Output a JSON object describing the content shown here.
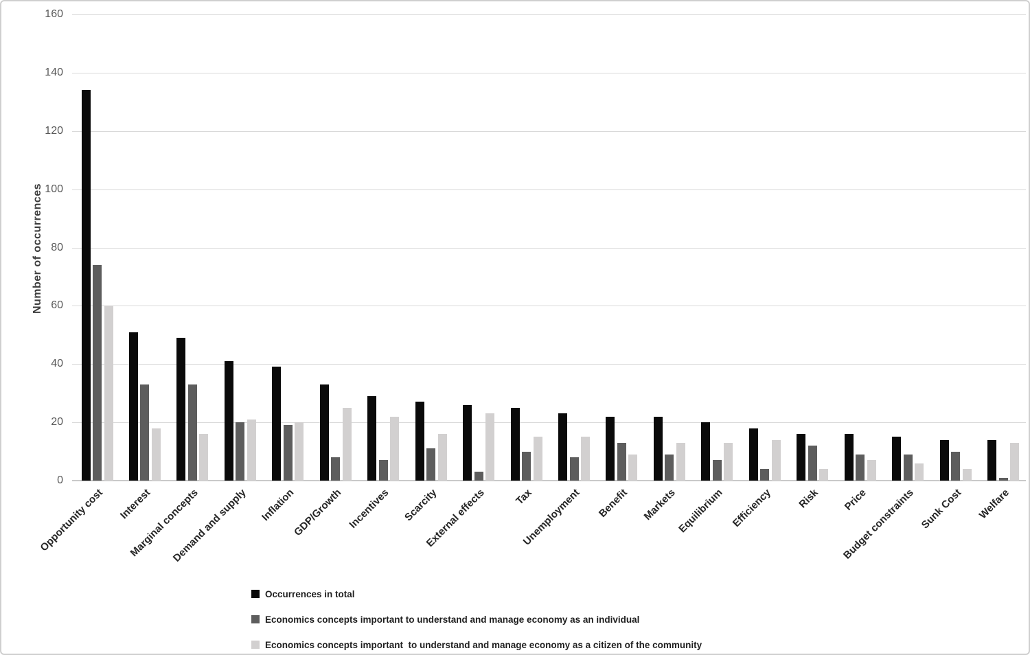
{
  "chart_data": {
    "type": "bar",
    "title": "",
    "xlabel": "",
    "ylabel": "Number of occurrences",
    "ylim": [
      0,
      160
    ],
    "yticks": [
      0,
      20,
      40,
      60,
      80,
      100,
      120,
      140,
      160
    ],
    "grid": true,
    "legend_position": "bottom-left",
    "categories": [
      "Opportunity cost",
      "Interest",
      "Marginal concepts",
      "Demand and supply",
      "Inflation",
      "GDP/Growth",
      "Incentives",
      "Scarcity",
      "External effects",
      "Tax",
      "Unemployment",
      "Benefit",
      "Markets",
      "Equilibrium",
      "Efficiency",
      "Risk",
      "Price",
      "Budget constraints",
      "Sunk Cost",
      "Welfare"
    ],
    "series": [
      {
        "name": "Occurrences in total",
        "color": "#0a0a0a",
        "values": [
          134,
          51,
          49,
          41,
          39,
          33,
          29,
          27,
          26,
          25,
          23,
          22,
          22,
          20,
          18,
          16,
          16,
          15,
          14,
          14
        ]
      },
      {
        "name": "Economics concepts important to understand and manage economy as an individual",
        "color": "#5d5d5d",
        "values": [
          74,
          33,
          33,
          20,
          19,
          8,
          7,
          11,
          3,
          10,
          8,
          13,
          9,
          7,
          4,
          12,
          9,
          9,
          10,
          1
        ]
      },
      {
        "name": "Economics concepts important  to understand and manage economy as a citizen of the community",
        "color": "#d2d0d0",
        "values": [
          60,
          18,
          16,
          21,
          20,
          25,
          22,
          16,
          23,
          15,
          15,
          9,
          13,
          13,
          14,
          4,
          7,
          6,
          4,
          13
        ]
      }
    ]
  },
  "colors": {
    "gridline": "#d9d9d9",
    "axis_line": "#c9c9c9",
    "tick_text": "#595959",
    "category_text": "#262626",
    "legend_text": "#1f1f1f",
    "background": "#ffffff",
    "border": "#cfcfcf"
  }
}
